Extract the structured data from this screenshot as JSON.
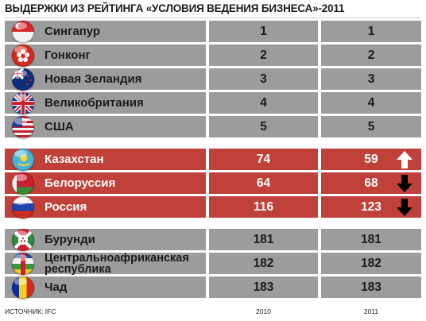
{
  "title": "ВЫДЕРЖКИ ИЗ РЕЙТИНГА «УСЛОВИЯ ВЕДЕНИЯ БИЗНЕСА»-2011",
  "footer": {
    "source": "ИСТОЧНИК: IFC",
    "col1": "2010",
    "col2": "2011"
  },
  "colors": {
    "gray_row": "#9c9c9c",
    "red_row": "#c0413a",
    "up_arrow": "#ffffff",
    "down_arrow": "#000000"
  },
  "chart_data": {
    "type": "table",
    "title": "ВЫДЕРЖКИ ИЗ РЕЙТИНГА «УСЛОВИЯ ВЕДЕНИЯ БИЗНЕСА»-2011",
    "columns": [
      "2010",
      "2011"
    ],
    "rows": [
      {
        "country": "Сингапур",
        "flag": "singapore-flag",
        "v2010": "1",
        "v2011": "1",
        "group": "top"
      },
      {
        "country": "Гонконг",
        "flag": "hong-kong-flag",
        "v2010": "2",
        "v2011": "2",
        "group": "top"
      },
      {
        "country": "Новая Зеландия",
        "flag": "new-zealand-flag",
        "v2010": "3",
        "v2011": "3",
        "group": "top"
      },
      {
        "country": "Великобритания",
        "flag": "uk-flag",
        "v2010": "4",
        "v2011": "4",
        "group": "top"
      },
      {
        "country": "США",
        "flag": "usa-flag",
        "v2010": "5",
        "v2011": "5",
        "group": "top"
      },
      {
        "country": "Казахстан",
        "flag": "kazakhstan-flag",
        "v2010": "74",
        "v2011": "59",
        "group": "highlight",
        "trend": "up"
      },
      {
        "country": "Белоруссия",
        "flag": "belarus-flag",
        "v2010": "64",
        "v2011": "68",
        "group": "highlight",
        "trend": "down"
      },
      {
        "country": "Россия",
        "flag": "russia-flag",
        "v2010": "116",
        "v2011": "123",
        "group": "highlight",
        "trend": "down"
      },
      {
        "country": "Бурунди",
        "flag": "burundi-flag",
        "v2010": "181",
        "v2011": "181",
        "group": "bottom"
      },
      {
        "country": "Центральноафриканская республика",
        "flag": "car-flag",
        "v2010": "182",
        "v2011": "182",
        "group": "bottom"
      },
      {
        "country": "Чад",
        "flag": "chad-flag",
        "v2010": "183",
        "v2011": "183",
        "group": "bottom"
      }
    ]
  }
}
